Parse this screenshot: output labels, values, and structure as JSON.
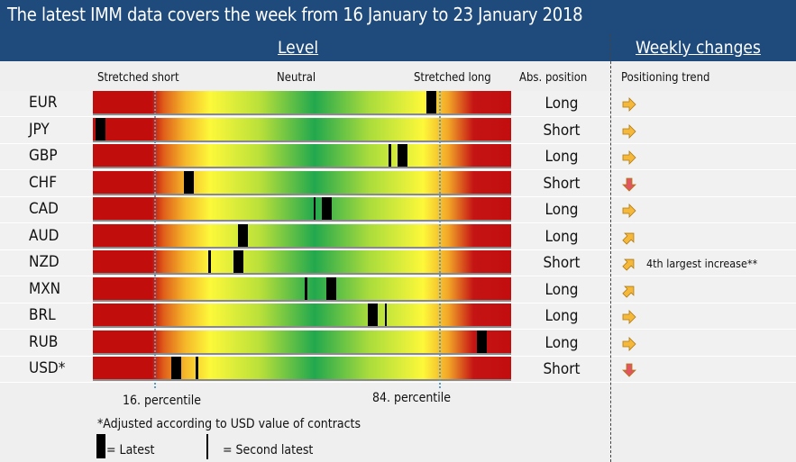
{
  "title": "The latest IMM data covers the week from 16 January to 23 January 2018",
  "headers": {
    "level": "Level",
    "weekly": "Weekly changes",
    "stretched_short": "Stretched short",
    "neutral": "Neutral",
    "stretched_long": "Stretched long",
    "abs_position": "Abs. position",
    "positioning_trend": "Positioning trend"
  },
  "chart_data": {
    "type": "positioning-gradient",
    "xlabel": "",
    "xlim": [
      0,
      100
    ],
    "reference_lines": [
      {
        "value": 16,
        "label": "16. percentile"
      },
      {
        "value": 84,
        "label": "84. percentile"
      }
    ],
    "rows": [
      {
        "currency": "EUR",
        "latest": 82,
        "second_latest": null,
        "position": "Long",
        "trend": "right",
        "note": ""
      },
      {
        "currency": "JPY",
        "latest": 3,
        "second_latest": null,
        "position": "Short",
        "trend": "right",
        "note": ""
      },
      {
        "currency": "GBP",
        "latest": 75,
        "second_latest": 72,
        "position": "Long",
        "trend": "right",
        "note": ""
      },
      {
        "currency": "CHF",
        "latest": 24,
        "second_latest": null,
        "position": "Short",
        "trend": "down",
        "note": ""
      },
      {
        "currency": "CAD",
        "latest": 57,
        "second_latest": 54,
        "position": "Long",
        "trend": "right",
        "note": ""
      },
      {
        "currency": "AUD",
        "latest": 37,
        "second_latest": 36,
        "position": "Long",
        "trend": "up-right",
        "note": ""
      },
      {
        "currency": "NZD",
        "latest": 36,
        "second_latest": 29,
        "position": "Short",
        "trend": "up-right",
        "note": "4th largest increase**"
      },
      {
        "currency": "MXN",
        "latest": 58,
        "second_latest": 52,
        "position": "Long",
        "trend": "up-right",
        "note": ""
      },
      {
        "currency": "BRL",
        "latest": 68,
        "second_latest": 71,
        "position": "Long",
        "trend": "right",
        "note": ""
      },
      {
        "currency": "RUB",
        "latest": 94,
        "second_latest": null,
        "position": "Long",
        "trend": "right",
        "note": ""
      },
      {
        "currency": "USD*",
        "latest": 21,
        "second_latest": 26,
        "position": "Short",
        "trend": "down",
        "note": ""
      }
    ]
  },
  "colors": {
    "header": "#1f4a7c",
    "trend_right": "#f5b83a",
    "trend_up": "#f5b83a",
    "trend_down": "#e0555e"
  },
  "footer": {
    "p16": "16. percentile",
    "p84": "84. percentile",
    "footnote": "*Adjusted according to USD value of contracts",
    "latest_legend": "= Latest",
    "second_legend": "= Second latest"
  }
}
